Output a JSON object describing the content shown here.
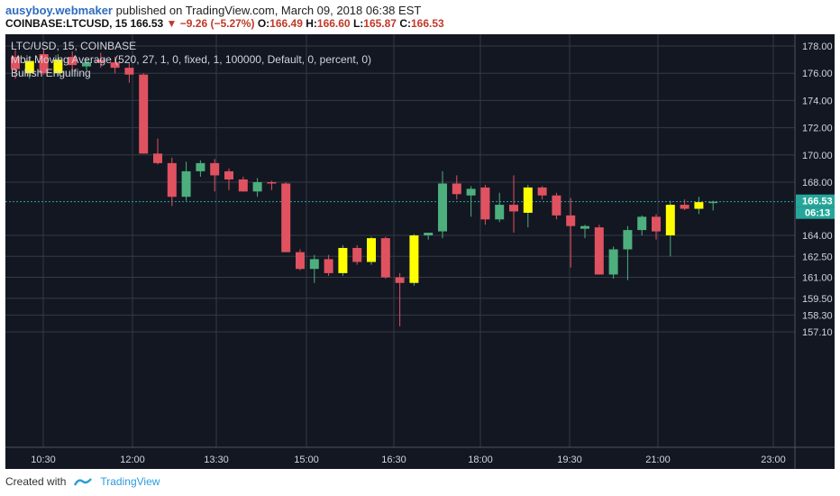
{
  "header": {
    "author": "ausyboy.webmaker",
    "published_text": "published on TradingView.com, March 09, 2018 06:38 EST",
    "symbol": "COINBASE:LTCUSD, 15",
    "last": "166.53",
    "change": "−9.26 (−5.27%)",
    "o_label": "O:",
    "o": "166.49",
    "h_label": "H:",
    "h": "166.60",
    "l_label": "L:",
    "l": "165.87",
    "c_label": "C:",
    "c": "166.53"
  },
  "legend": {
    "line1": "LTC/USD, 15, COINBASE",
    "line2": "Mbit Moving Average (520, 27, 1, 0, fixed, 1, 100000, Default, 0, percent, 0)",
    "line3": "Bullish Engulfing"
  },
  "footer": {
    "created_with": "Created with",
    "brand": "TradingView"
  },
  "colors": {
    "bull": "#4caf7d",
    "bear": "#e05260",
    "engulf": "#ffff00",
    "bg": "#131722",
    "grid": "#363a45",
    "price_line": "#26a69a"
  },
  "chart_data": {
    "type": "candlestick",
    "title": "LTC/USD, 15, COINBASE",
    "y_ticks": [
      "178.00",
      "176.00",
      "174.00",
      "172.00",
      "170.00",
      "168.00",
      "166.53",
      "164.00",
      "162.50",
      "161.00",
      "159.50",
      "158.30",
      "157.10"
    ],
    "x_ticks": [
      "10:30",
      "12:00",
      "13:30",
      "15:00",
      "16:30",
      "18:00",
      "19:30",
      "21:00",
      "23:00"
    ],
    "last_price": "166.53",
    "countdown": "06:13",
    "candles": [
      {
        "o": 177.2,
        "h": 177.7,
        "l": 175.6,
        "c": 176.3,
        "t": "bear"
      },
      {
        "o": 176.0,
        "h": 177.1,
        "l": 175.6,
        "c": 176.9,
        "t": "engulf"
      },
      {
        "o": 177.4,
        "h": 177.8,
        "l": 175.9,
        "c": 176.0,
        "t": "bear"
      },
      {
        "o": 176.0,
        "h": 177.4,
        "l": 175.8,
        "c": 177.0,
        "t": "engulf"
      },
      {
        "o": 177.2,
        "h": 177.6,
        "l": 176.0,
        "c": 176.6,
        "t": "bear"
      },
      {
        "o": 176.5,
        "h": 177.1,
        "l": 176.2,
        "c": 176.8,
        "t": "bull"
      },
      {
        "o": 177.0,
        "h": 177.5,
        "l": 176.4,
        "c": 176.8,
        "t": "bear"
      },
      {
        "o": 176.8,
        "h": 177.2,
        "l": 176.0,
        "c": 176.4,
        "t": "bear"
      },
      {
        "o": 176.4,
        "h": 176.8,
        "l": 175.3,
        "c": 175.9,
        "t": "bear"
      },
      {
        "o": 175.9,
        "h": 176.0,
        "l": 170.1,
        "c": 170.1,
        "t": "bear"
      },
      {
        "o": 170.1,
        "h": 171.2,
        "l": 169.3,
        "c": 169.4,
        "t": "bear"
      },
      {
        "o": 169.4,
        "h": 169.8,
        "l": 166.2,
        "c": 166.9,
        "t": "bear"
      },
      {
        "o": 166.9,
        "h": 169.5,
        "l": 166.6,
        "c": 168.8,
        "t": "bull"
      },
      {
        "o": 168.8,
        "h": 169.6,
        "l": 168.4,
        "c": 169.4,
        "t": "bull"
      },
      {
        "o": 169.4,
        "h": 169.7,
        "l": 167.3,
        "c": 168.5,
        "t": "bear"
      },
      {
        "o": 168.8,
        "h": 169.0,
        "l": 167.4,
        "c": 168.2,
        "t": "bear"
      },
      {
        "o": 168.2,
        "h": 168.4,
        "l": 167.3,
        "c": 167.3,
        "t": "bear"
      },
      {
        "o": 167.3,
        "h": 168.3,
        "l": 166.9,
        "c": 168.0,
        "t": "bull"
      },
      {
        "o": 168.0,
        "h": 168.1,
        "l": 167.4,
        "c": 167.9,
        "t": "bear"
      },
      {
        "o": 167.9,
        "h": 168.0,
        "l": 162.8,
        "c": 162.8,
        "t": "bear"
      },
      {
        "o": 162.8,
        "h": 163.0,
        "l": 161.5,
        "c": 161.6,
        "t": "bear"
      },
      {
        "o": 161.6,
        "h": 162.6,
        "l": 160.6,
        "c": 162.3,
        "t": "bull"
      },
      {
        "o": 162.3,
        "h": 162.6,
        "l": 161.1,
        "c": 161.3,
        "t": "bear"
      },
      {
        "o": 161.3,
        "h": 163.3,
        "l": 161.1,
        "c": 163.1,
        "t": "engulf"
      },
      {
        "o": 163.1,
        "h": 163.3,
        "l": 161.9,
        "c": 162.1,
        "t": "bear"
      },
      {
        "o": 162.1,
        "h": 163.9,
        "l": 161.9,
        "c": 163.8,
        "t": "engulf"
      },
      {
        "o": 163.8,
        "h": 163.9,
        "l": 160.9,
        "c": 161.0,
        "t": "bear"
      },
      {
        "o": 161.0,
        "h": 161.3,
        "l": 157.5,
        "c": 160.6,
        "t": "bear"
      },
      {
        "o": 160.6,
        "h": 164.1,
        "l": 160.4,
        "c": 164.0,
        "t": "engulf"
      },
      {
        "o": 164.0,
        "h": 164.2,
        "l": 163.7,
        "c": 164.2,
        "t": "bull"
      },
      {
        "o": 164.3,
        "h": 168.8,
        "l": 163.8,
        "c": 167.9,
        "t": "bull"
      },
      {
        "o": 167.9,
        "h": 168.5,
        "l": 166.7,
        "c": 167.1,
        "t": "bear"
      },
      {
        "o": 167.0,
        "h": 167.7,
        "l": 165.4,
        "c": 167.5,
        "t": "bull"
      },
      {
        "o": 167.6,
        "h": 167.8,
        "l": 164.8,
        "c": 165.2,
        "t": "bear"
      },
      {
        "o": 165.2,
        "h": 167.2,
        "l": 165.0,
        "c": 166.3,
        "t": "bull"
      },
      {
        "o": 166.3,
        "h": 168.5,
        "l": 164.2,
        "c": 165.8,
        "t": "bear"
      },
      {
        "o": 165.7,
        "h": 167.8,
        "l": 164.6,
        "c": 167.6,
        "t": "engulf"
      },
      {
        "o": 167.6,
        "h": 167.7,
        "l": 166.7,
        "c": 167.0,
        "t": "bear"
      },
      {
        "o": 167.0,
        "h": 167.2,
        "l": 165.2,
        "c": 165.5,
        "t": "bear"
      },
      {
        "o": 165.5,
        "h": 166.8,
        "l": 161.7,
        "c": 164.7,
        "t": "bear"
      },
      {
        "o": 164.5,
        "h": 164.8,
        "l": 163.8,
        "c": 164.7,
        "t": "bull"
      },
      {
        "o": 164.6,
        "h": 164.8,
        "l": 161.2,
        "c": 161.2,
        "t": "bear"
      },
      {
        "o": 161.2,
        "h": 163.2,
        "l": 160.9,
        "c": 163.0,
        "t": "bull"
      },
      {
        "o": 163.0,
        "h": 164.7,
        "l": 160.8,
        "c": 164.4,
        "t": "bull"
      },
      {
        "o": 164.4,
        "h": 165.5,
        "l": 164.0,
        "c": 165.4,
        "t": "bull"
      },
      {
        "o": 165.4,
        "h": 165.6,
        "l": 163.7,
        "c": 164.3,
        "t": "bear"
      },
      {
        "o": 164.0,
        "h": 166.6,
        "l": 162.5,
        "c": 166.3,
        "t": "engulf"
      },
      {
        "o": 166.3,
        "h": 166.7,
        "l": 165.9,
        "c": 166.0,
        "t": "bear"
      },
      {
        "o": 166.0,
        "h": 166.9,
        "l": 165.6,
        "c": 166.5,
        "t": "engulf"
      },
      {
        "o": 166.49,
        "h": 166.6,
        "l": 165.87,
        "c": 166.53,
        "t": "bull"
      }
    ]
  }
}
